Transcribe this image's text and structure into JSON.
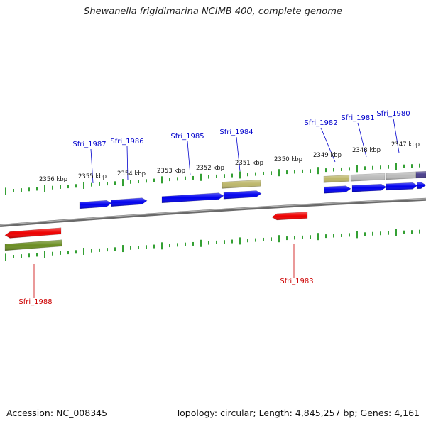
{
  "title": "Shewanella frigidimarina NCIMB 400, complete genome",
  "footer": {
    "accession": "Accession: NC_008345",
    "topology": "Topology: circular; Length: 4,845,257 bp; Genes: 4,161"
  },
  "colors": {
    "forward_cds": "#0000ee",
    "reverse_cds": "#ee0000",
    "olive_gene": "#6b8e23",
    "khaki_gene": "#bdb76b",
    "gray_gene": "#bbbbbb",
    "dark_gene": "#483d8b",
    "tick": "#008800",
    "backbone": "#808080"
  },
  "kbp_labels": [
    "2356 kbp",
    "2355 kbp",
    "2354 kbp",
    "2353 kbp",
    "2352 kbp",
    "2351 kbp",
    "2350 kbp",
    "2349 kbp",
    "2348 kbp",
    "2347 kbp"
  ],
  "gene_labels": [
    {
      "text": "Sfri_1987",
      "strand": "forward"
    },
    {
      "text": "Sfri_1986",
      "strand": "forward"
    },
    {
      "text": "Sfri_1985",
      "strand": "forward"
    },
    {
      "text": "Sfri_1984",
      "strand": "forward"
    },
    {
      "text": "Sfri_1982",
      "strand": "forward"
    },
    {
      "text": "Sfri_1981",
      "strand": "forward"
    },
    {
      "text": "Sfri_1980",
      "strand": "forward"
    },
    {
      "text": "Sfri_1988",
      "strand": "reverse"
    },
    {
      "text": "Sfri_1983",
      "strand": "reverse"
    }
  ]
}
